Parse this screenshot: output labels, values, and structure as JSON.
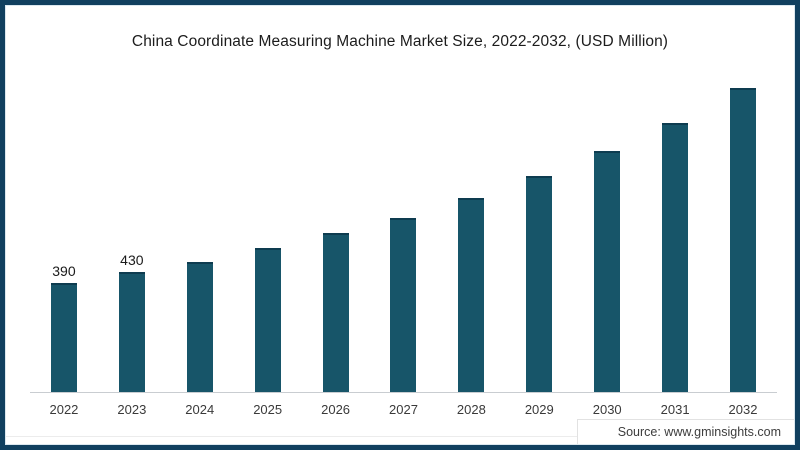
{
  "chart_data": {
    "type": "bar",
    "title": "China Coordinate Measuring Machine Market Size, 2022-2032, (USD Million)",
    "categories": [
      "2022",
      "2023",
      "2024",
      "2025",
      "2026",
      "2027",
      "2028",
      "2029",
      "2030",
      "2031",
      "2032"
    ],
    "values": [
      390,
      430,
      465,
      515,
      570,
      625,
      695,
      775,
      865,
      965,
      1090
    ],
    "data_labels": [
      "390",
      "430",
      "",
      "",
      "",
      "",
      "",
      "",
      "",
      "",
      ""
    ],
    "xlabel": "",
    "ylabel": "",
    "ylim": [
      0,
      1150
    ],
    "grid": false,
    "legend": false,
    "bar_color": "#175569",
    "axis_line_color": "#c9cdd1",
    "page_border_color": "#11405f"
  },
  "footer": {
    "source_label": "Source: www.gminsights.com"
  }
}
